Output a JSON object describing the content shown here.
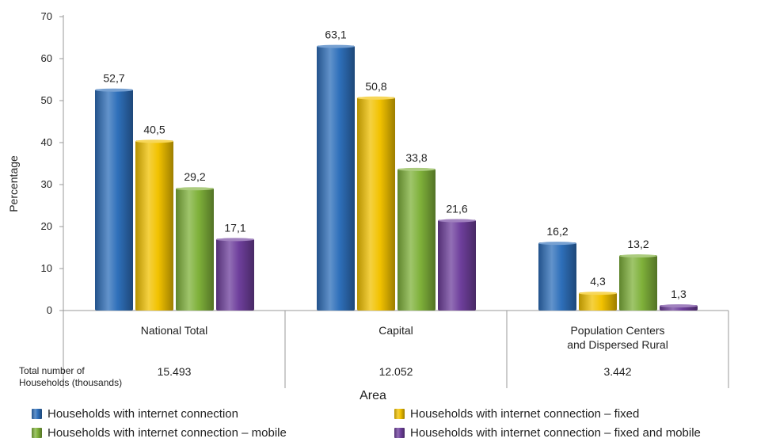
{
  "chart_data": {
    "type": "bar",
    "categories": [
      "National Total",
      "Capital",
      [
        "Population Centers",
        "and Dispersed Rural"
      ]
    ],
    "series": [
      {
        "name": "Households with internet connection",
        "color": "#2e6fba",
        "values": [
          52.7,
          63.1,
          16.2
        ],
        "labels": [
          "52,7",
          "63,1",
          "16,2"
        ]
      },
      {
        "name": "Households with internet connection – fixed",
        "color": "#f2c200",
        "values": [
          40.5,
          50.8,
          4.3
        ],
        "labels": [
          "40,5",
          "50,8",
          "4,3"
        ]
      },
      {
        "name": "Households with internet connection – mobile",
        "color": "#7fb13a",
        "values": [
          29.2,
          33.8,
          13.2
        ],
        "labels": [
          "29,2",
          "33,8",
          "13,2"
        ]
      },
      {
        "name": "Households with internet connection – fixed and mobile",
        "color": "#6e3f9c",
        "values": [
          17.1,
          21.6,
          1.3
        ],
        "labels": [
          "17,1",
          "21,6",
          "1,3"
        ]
      }
    ],
    "ylabel": "Percentage",
    "xlabel": "Area",
    "ylim": [
      0,
      70
    ],
    "yticks": [
      0,
      10,
      20,
      30,
      40,
      50,
      60,
      70
    ],
    "legend_position": "bottom",
    "grid": false,
    "households": {
      "label": [
        "Total number of",
        "Households (thousands)"
      ],
      "values": [
        "15.493",
        "12.052",
        "3.442"
      ]
    }
  }
}
